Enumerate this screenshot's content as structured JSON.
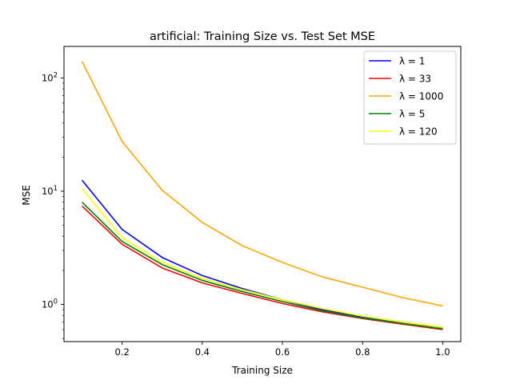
{
  "chart_data": {
    "type": "line",
    "title": "artificial: Training Size vs. Test Set MSE",
    "xlabel": "Training Size",
    "ylabel": "MSE",
    "xscale": "linear",
    "yscale": "log",
    "xlim": [
      0.055,
      1.045
    ],
    "ylim": [
      0.47,
      190
    ],
    "x": [
      0.1,
      0.2,
      0.3,
      0.4,
      0.5,
      0.6,
      0.7,
      0.8,
      0.9,
      1.0
    ],
    "xticks": [
      {
        "v": 0.2,
        "label": "0.2"
      },
      {
        "v": 0.4,
        "label": "0.4"
      },
      {
        "v": 0.6,
        "label": "0.6"
      },
      {
        "v": 0.8,
        "label": "0.8"
      },
      {
        "v": 1.0,
        "label": "1.0"
      }
    ],
    "yticks": [
      {
        "v": 1,
        "base": "10",
        "exp": "0"
      },
      {
        "v": 10,
        "base": "10",
        "exp": "1"
      },
      {
        "v": 100,
        "base": "10",
        "exp": "2"
      }
    ],
    "grid": false,
    "legend_position": "top-right",
    "series": [
      {
        "name": "λ = 1",
        "color": "#0000ff",
        "values": [
          12.5,
          4.6,
          2.6,
          1.8,
          1.38,
          1.1,
          0.9,
          0.77,
          0.68,
          0.61
        ]
      },
      {
        "name": "λ = 33",
        "color": "#ff0000",
        "values": [
          7.4,
          3.4,
          2.1,
          1.55,
          1.25,
          1.02,
          0.86,
          0.75,
          0.67,
          0.6
        ]
      },
      {
        "name": "λ = 1000",
        "color": "#ffa500",
        "values": [
          140,
          27.5,
          10.2,
          5.3,
          3.3,
          2.35,
          1.75,
          1.42,
          1.15,
          0.97
        ]
      },
      {
        "name": "λ = 5",
        "color": "#008000",
        "values": [
          8.0,
          3.6,
          2.25,
          1.63,
          1.3,
          1.06,
          0.88,
          0.76,
          0.68,
          0.61
        ]
      },
      {
        "name": "λ = 120",
        "color": "#ffff00",
        "values": [
          10.5,
          3.9,
          2.35,
          1.7,
          1.35,
          1.1,
          0.92,
          0.79,
          0.7,
          0.63
        ]
      }
    ]
  }
}
